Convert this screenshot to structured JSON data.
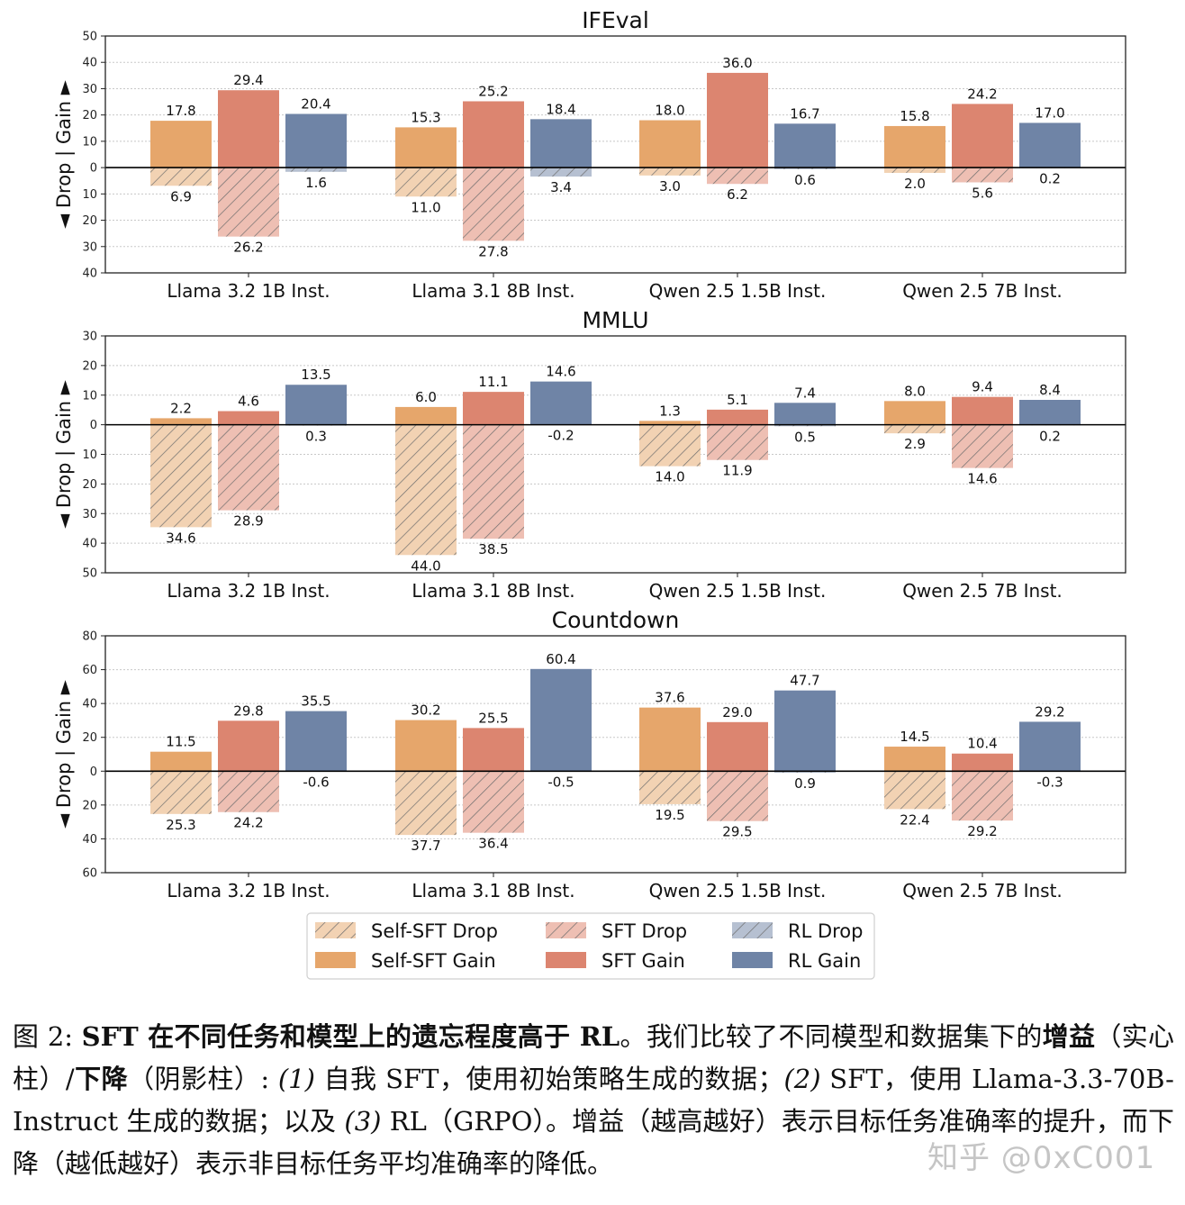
{
  "chart_data": {
    "type": "bar",
    "categories": [
      "Llama 3.2 1B Inst.",
      "Llama 3.1 8B Inst.",
      "Qwen 2.5 1.5B Inst.",
      "Qwen 2.5 7B Inst."
    ],
    "methods": [
      "Self-SFT",
      "SFT",
      "RL"
    ],
    "ylabel": "◄ Drop | Gain ►",
    "legend": {
      "placement": "bottom-center",
      "entries": [
        "Self-SFT Drop",
        "SFT Drop",
        "RL Drop",
        "Self-SFT Gain",
        "SFT Gain",
        "RL Gain"
      ]
    },
    "colors": {
      "Self-SFT": "#e6a66b",
      "SFT": "#dc8570",
      "RL": "#6f84a6",
      "Self-SFT-drop": "#f2d2b3",
      "SFT-drop": "#eebfb3",
      "RL-drop": "#b6c0d1"
    },
    "grid": true,
    "panels": [
      {
        "title": "IFEval",
        "ylim_gain": 50,
        "ylim_drop": 40,
        "yticks_gain": [
          50,
          40,
          30,
          20,
          10,
          0
        ],
        "yticks_drop": [
          10,
          20,
          30,
          40
        ],
        "gain": {
          "Self-SFT": [
            17.8,
            15.3,
            18.0,
            15.8
          ],
          "SFT": [
            29.4,
            25.2,
            36.0,
            24.2
          ],
          "RL": [
            20.4,
            18.4,
            16.7,
            17.0
          ]
        },
        "drop": {
          "Self-SFT": [
            6.9,
            11.0,
            3.0,
            2.0
          ],
          "SFT": [
            26.2,
            27.8,
            6.2,
            5.6
          ],
          "RL": [
            1.6,
            3.4,
            0.6,
            0.2
          ]
        }
      },
      {
        "title": "MMLU",
        "ylim_gain": 30,
        "ylim_drop": 50,
        "yticks_gain": [
          30,
          20,
          10,
          0
        ],
        "yticks_drop": [
          10,
          20,
          30,
          40,
          50
        ],
        "gain": {
          "Self-SFT": [
            2.2,
            6.0,
            1.3,
            8.0
          ],
          "SFT": [
            4.6,
            11.1,
            5.1,
            9.4
          ],
          "RL": [
            13.5,
            14.6,
            7.4,
            8.4
          ]
        },
        "drop": {
          "Self-SFT": [
            34.6,
            44.0,
            14.0,
            2.9
          ],
          "SFT": [
            28.9,
            38.5,
            11.9,
            14.6
          ],
          "RL": [
            0.3,
            -0.2,
            0.5,
            0.2
          ]
        }
      },
      {
        "title": "Countdown",
        "ylim_gain": 80,
        "ylim_drop": 60,
        "yticks_gain": [
          80,
          60,
          40,
          20,
          0
        ],
        "yticks_drop": [
          20,
          40,
          60
        ],
        "gain": {
          "Self-SFT": [
            11.5,
            30.2,
            37.6,
            14.5
          ],
          "SFT": [
            29.8,
            25.5,
            29.0,
            10.4
          ],
          "RL": [
            35.5,
            60.4,
            47.7,
            29.2
          ]
        },
        "drop": {
          "Self-SFT": [
            25.3,
            37.7,
            19.5,
            22.4
          ],
          "SFT": [
            24.2,
            36.4,
            29.5,
            29.2
          ],
          "RL": [
            -0.6,
            -0.5,
            0.9,
            -0.3
          ]
        }
      }
    ]
  },
  "caption": {
    "fig_label": "图 2: ",
    "bold_title": "SFT 在不同任务和模型上的遗忘程度高于 RL",
    "t1": "。我们比较了不同模型和数据集下的",
    "gain_word": "增益",
    "t2": "（实心柱）/",
    "drop_word": "下降",
    "t3": "（阴影柱）: ",
    "n1": "(1)",
    "t4": " 自我 SFT，使用初始策略生成的数据；",
    "n2": "(2)",
    "t5": " SFT，使用 Llama-3.3-70B-Instruct 生成的数据；以及 ",
    "n3": "(3)",
    "t6": " RL（GRPO）。增益（越高越好）表示目标任务准确率的提升，而下降（越低越好）表示非目标任务平均准确率的降低。"
  },
  "watermark": "知乎 @0xC001"
}
